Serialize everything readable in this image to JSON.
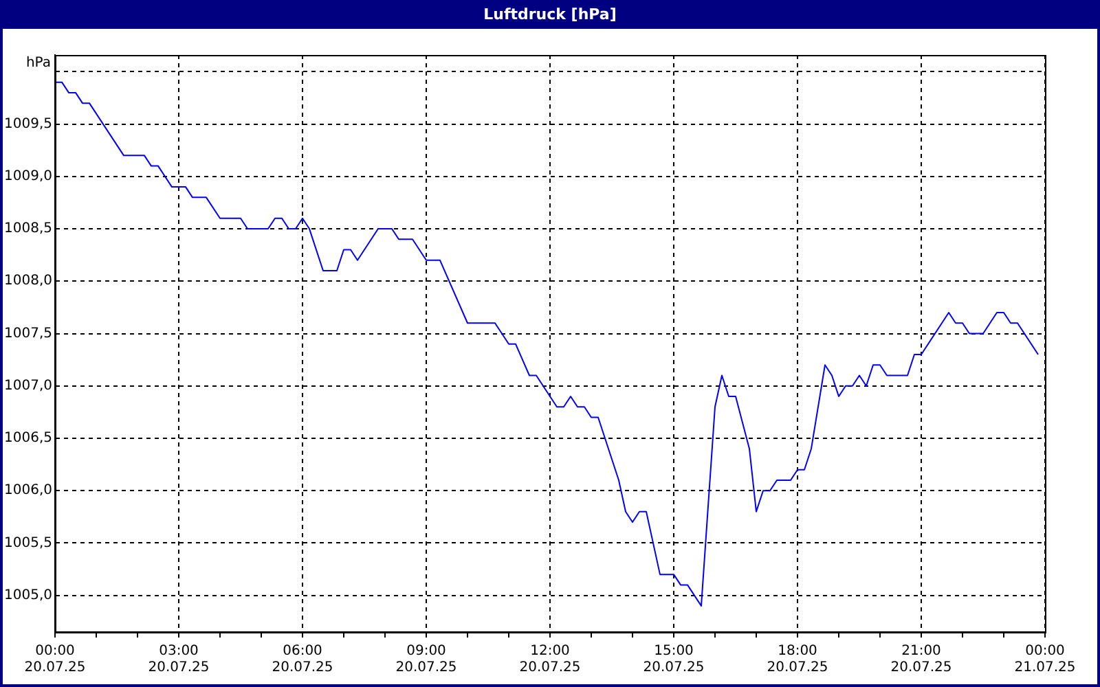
{
  "chart_data": {
    "type": "line",
    "title": "Luftdruck [hPa]",
    "ylabel": "hPa",
    "x": [
      "--07-20T00:00",
      "--07-20T00:10",
      "--07-20T00:20",
      "--07-20T00:30",
      "--07-20T00:40",
      "--07-20T00:50",
      "--07-20T01:40",
      "--07-20T02:10",
      "--07-20T02:20",
      "--07-20T02:30",
      "--07-20T02:50",
      "--07-20T03:10",
      "--07-20T03:20",
      "--07-20T03:40",
      "--07-20T04:00",
      "--07-20T04:30",
      "--07-20T04:40",
      "--07-20T05:10",
      "--07-20T05:20",
      "--07-20T05:30",
      "--07-20T05:40",
      "--07-20T05:50",
      "--07-20T06:00",
      "--07-20T06:10",
      "--07-20T06:30",
      "--07-20T06:50",
      "--07-20T07:00",
      "--07-20T07:10",
      "--07-20T07:20",
      "--07-20T07:50",
      "--07-20T08:10",
      "--07-20T08:20",
      "--07-20T08:40",
      "--07-20T09:00",
      "--07-20T09:20",
      "--07-20T10:00",
      "--07-20T10:40",
      "--07-20T11:00",
      "--07-20T11:10",
      "--07-20T11:30",
      "--07-20T11:40",
      "--07-20T12:10",
      "--07-20T12:20",
      "--07-20T12:30",
      "--07-20T12:40",
      "--07-20T12:50",
      "--07-20T13:00",
      "--07-20T13:10",
      "--07-20T13:40",
      "--07-20T13:50",
      "--07-20T14:00",
      "--07-20T14:10",
      "--07-20T14:20",
      "--07-20T14:40",
      "--07-20T15:00",
      "--07-20T15:10",
      "--07-20T15:20",
      "--07-20T15:40",
      "--07-20T16:00",
      "--07-20T16:10",
      "--07-20T16:20",
      "--07-20T16:30",
      "--07-20T16:50",
      "--07-20T17:00",
      "--07-20T17:10",
      "--07-20T17:20",
      "--07-20T17:30",
      "--07-20T17:50",
      "--07-20T18:00",
      "--07-20T18:10",
      "--07-20T18:20",
      "--07-20T18:40",
      "--07-20T18:50",
      "--07-20T19:00",
      "--07-20T19:10",
      "--07-20T19:20",
      "--07-20T19:30",
      "--07-20T19:40",
      "--07-20T19:50",
      "--07-20T20:00",
      "--07-20T20:10",
      "--07-20T20:40",
      "--07-20T20:50",
      "--07-20T21:00",
      "--07-20T21:40",
      "--07-20T21:50",
      "--07-20T22:00",
      "--07-20T22:10",
      "--07-20T22:30",
      "--07-20T22:50",
      "--07-20T23:00",
      "--07-20T23:10",
      "--07-20T23:20",
      "--07-20T23:50"
    ],
    "series": [
      {
        "color": "#0000ff",
        "values": [
          1009.9,
          1009.9,
          1009.8,
          1009.8,
          1009.7,
          1009.7,
          1009.2,
          1009.2,
          1009.1,
          1009.1,
          1008.9,
          1008.9,
          1008.8,
          1008.8,
          1008.6,
          1008.6,
          1008.5,
          1008.5,
          1008.6,
          1008.6,
          1008.5,
          1008.5,
          1008.6,
          1008.5,
          1008.1,
          1008.1,
          1008.3,
          1008.3,
          1008.2,
          1008.5,
          1008.5,
          1008.4,
          1008.4,
          1008.2,
          1008.2,
          1007.6,
          1007.6,
          1007.4,
          1007.4,
          1007.1,
          1007.1,
          1006.8,
          1006.8,
          1006.9,
          1006.8,
          1006.8,
          1006.7,
          1006.7,
          1006.1,
          1005.8,
          1005.7,
          1005.8,
          1005.8,
          1005.2,
          1005.2,
          1005.1,
          1005.1,
          1004.9,
          1006.8,
          1007.1,
          1006.9,
          1006.9,
          1006.4,
          1005.8,
          1006.0,
          1006.0,
          1006.1,
          1006.1,
          1006.2,
          1006.2,
          1006.4,
          1007.2,
          1007.1,
          1006.9,
          1007.0,
          1007.0,
          1007.1,
          1007.0,
          1007.2,
          1007.2,
          1007.1,
          1007.1,
          1007.3,
          1007.3,
          1007.7,
          1007.6,
          1007.6,
          1007.5,
          1007.5,
          1007.7,
          1007.7,
          1007.6,
          1007.6,
          1007.3
        ]
      }
    ],
    "xlim": [
      "--07-20T00:00",
      "--07-21T00:00"
    ],
    "xticks": [
      {
        "value": "--07-20T00:00",
        "label": "00:00\n20.07.25"
      },
      {
        "value": "--07-20T01:00",
        "label": null
      },
      {
        "value": "--07-20T02:00",
        "label": null
      },
      {
        "value": "--07-20T03:00",
        "label": "03:00\n20.07.25"
      },
      {
        "value": "--07-20T04:00",
        "label": null
      },
      {
        "value": "--07-20T05:00",
        "label": null
      },
      {
        "value": "--07-20T06:00",
        "label": "06:00\n20.07.25"
      },
      {
        "value": "--07-20T07:00",
        "label": null
      },
      {
        "value": "--07-20T08:00",
        "label": null
      },
      {
        "value": "--07-20T09:00",
        "label": "09:00\n20.07.25"
      },
      {
        "value": "--07-20T10:00",
        "label": null
      },
      {
        "value": "--07-20T11:00",
        "label": null
      },
      {
        "value": "--07-20T12:00",
        "label": "12:00\n20.07.25"
      },
      {
        "value": "--07-20T13:00",
        "label": null
      },
      {
        "value": "--07-20T14:00",
        "label": null
      },
      {
        "value": "--07-20T15:00",
        "label": "15:00\n20.07.25"
      },
      {
        "value": "--07-20T16:00",
        "label": null
      },
      {
        "value": "--07-20T17:00",
        "label": null
      },
      {
        "value": "--07-20T18:00",
        "label": "18:00\n20.07.25"
      },
      {
        "value": "--07-20T19:00",
        "label": null
      },
      {
        "value": "--07-20T20:00",
        "label": null
      },
      {
        "value": "--07-20T21:00",
        "label": "21:00\n20.07.25"
      },
      {
        "value": "--07-20T22:00",
        "label": null
      },
      {
        "value": "--07-20T23:00",
        "label": null
      },
      {
        "value": "--07-21T00:00",
        "label": "00:00\n21.07.25"
      }
    ],
    "ylim": [
      1004.65,
      1010.16
    ],
    "yticks": [
      {
        "value": 1005,
        "label": "1005,0"
      },
      {
        "value": 1005.5,
        "label": "1005,5"
      },
      {
        "value": 1006,
        "label": "1006,0"
      },
      {
        "value": 1006.5,
        "label": "1006,5"
      },
      {
        "value": 1007,
        "label": "1007,0"
      },
      {
        "value": 1007.5,
        "label": "1007,5"
      },
      {
        "value": 1008,
        "label": "1008,0"
      },
      {
        "value": 1008.5,
        "label": "1008,5"
      },
      {
        "value": 1009,
        "label": "1009,0"
      },
      {
        "value": 1009.5,
        "label": "1009,5"
      },
      {
        "value": 1010,
        "label": null
      }
    ],
    "grid": true,
    "legend": false,
    "marker": "none",
    "line_style": "solid"
  }
}
